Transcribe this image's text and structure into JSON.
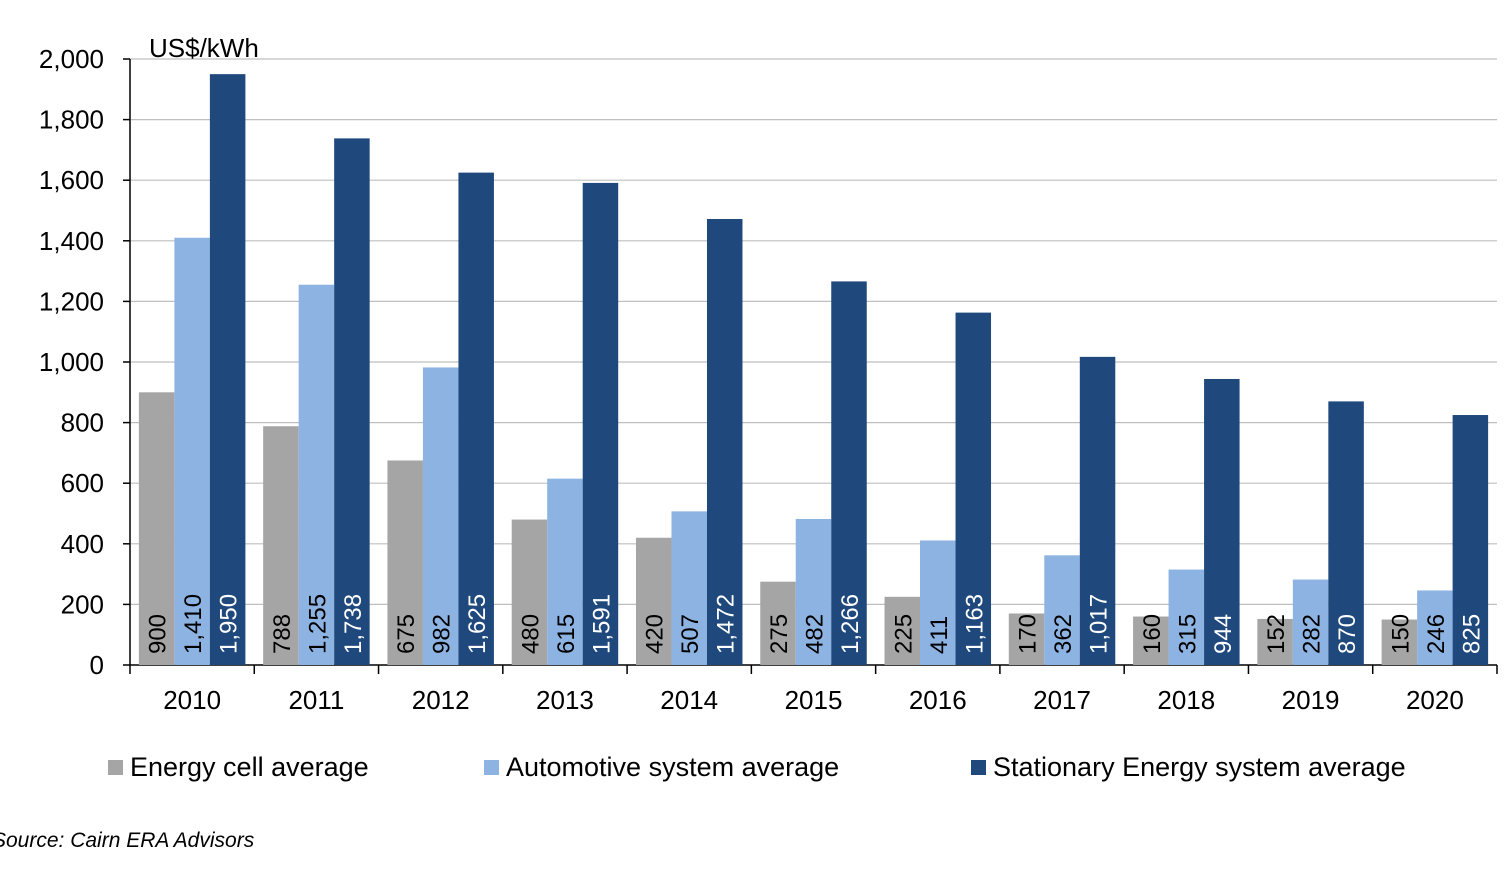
{
  "chart_data": {
    "type": "bar",
    "unit_label": "US$/kWh",
    "ylim": [
      0,
      2000
    ],
    "y_ticks": [
      0,
      200,
      400,
      600,
      800,
      1000,
      1200,
      1400,
      1600,
      1800,
      2000
    ],
    "y_tick_labels": [
      "0",
      "200",
      "400",
      "600",
      "800",
      "1,000",
      "1,200",
      "1,400",
      "1,600",
      "1,800",
      "2,000"
    ],
    "grid": true,
    "categories": [
      "2010",
      "2011",
      "2012",
      "2013",
      "2014",
      "2015",
      "2016",
      "2017",
      "2018",
      "2019",
      "2020"
    ],
    "series": [
      {
        "name": "Energy cell average",
        "color": "#a5a5a5",
        "label_color": "#000000",
        "values": [
          900,
          788,
          675,
          480,
          420,
          275,
          225,
          170,
          160,
          152,
          150
        ],
        "labels": [
          "900",
          "788",
          "675",
          "480",
          "420",
          "275",
          "225",
          "170",
          "160",
          "152",
          "150"
        ]
      },
      {
        "name": "Automotive system average",
        "color": "#8db3e2",
        "label_color": "#000000",
        "values": [
          1410,
          1255,
          982,
          615,
          507,
          482,
          411,
          362,
          315,
          282,
          246
        ],
        "labels": [
          "1,410",
          "1,255",
          "982",
          "615",
          "507",
          "482",
          "411",
          "362",
          "315",
          "282",
          "246"
        ]
      },
      {
        "name": "Stationary Energy system average",
        "color": "#1f497d",
        "label_color": "#ffffff",
        "values": [
          1950,
          1738,
          1625,
          1591,
          1472,
          1266,
          1163,
          1017,
          944,
          870,
          825
        ],
        "labels": [
          "1,950",
          "1,738",
          "1,625",
          "1,591",
          "1,472",
          "1,266",
          "1,163",
          "1,017",
          "944",
          "870",
          "825"
        ]
      }
    ],
    "legend_position": "bottom",
    "source": "Source: Cairn ERA Advisors"
  }
}
